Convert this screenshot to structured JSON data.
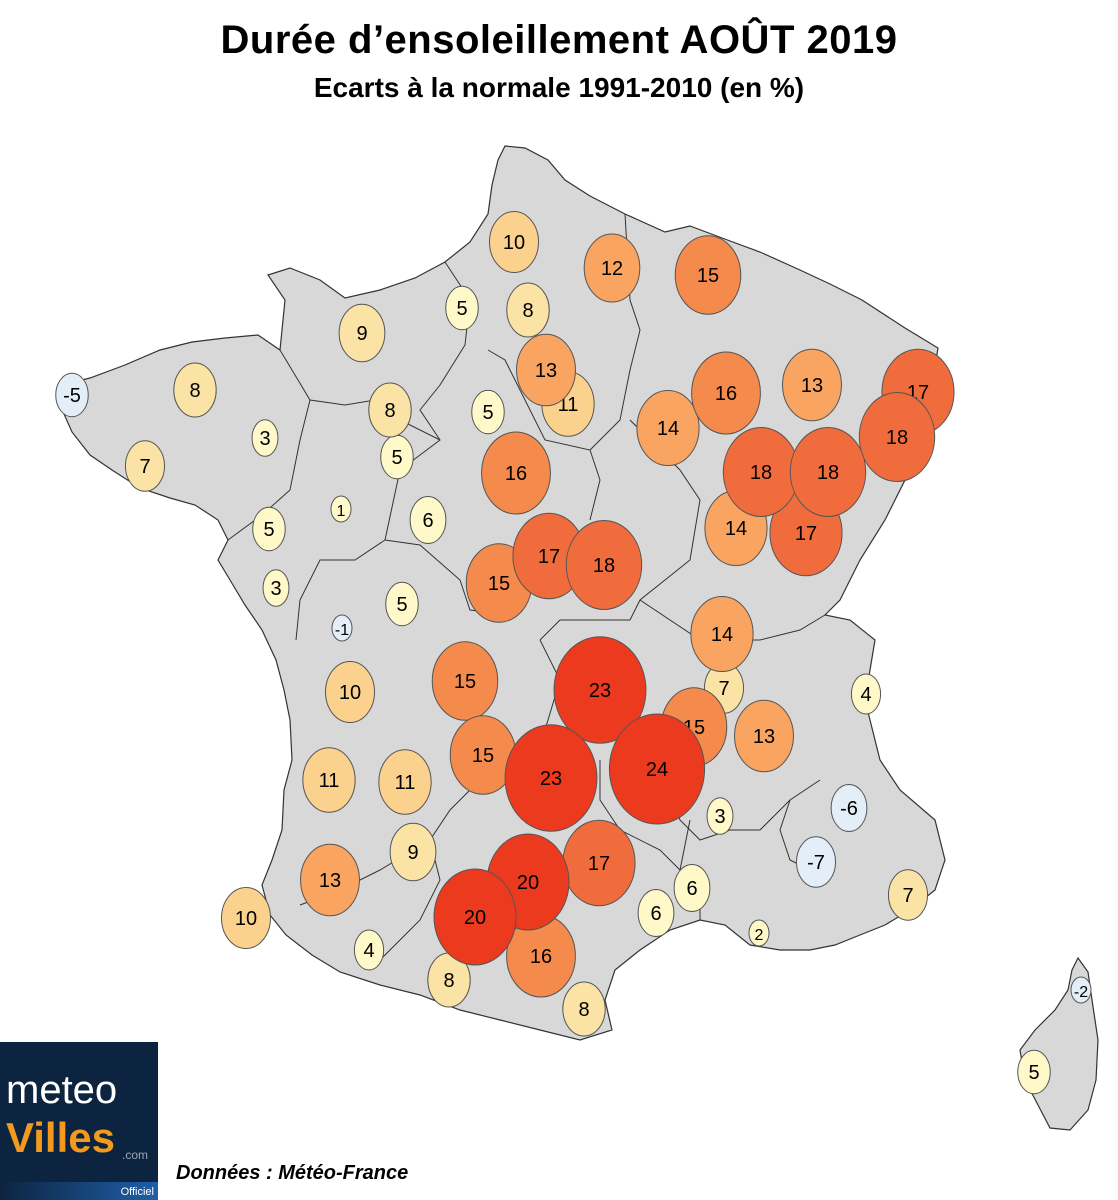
{
  "title": "Durée d’ensoleillement AOÛT 2019",
  "subtitle": "Ecarts à la normale 1991-2010 (en %)",
  "source": "Données : Météo-France",
  "logo": {
    "line1": "meteo",
    "line2": "Villes",
    "suffix": ".com",
    "tag": "Officiel"
  },
  "colors": {
    "land": "#d8d8d8",
    "border": "#333333",
    "negative": "#e3eef8",
    "very_low": "#fff8c8",
    "low": "#fbe3a5",
    "mid": "#fbd18e",
    "mid_high": "#f9a460",
    "high": "#f48a4b",
    "very_high": "#f06c3c",
    "extreme": "#ec3a1f"
  },
  "stations": [
    {
      "value": -5
    },
    {
      "value": 8
    },
    {
      "value": 3
    },
    {
      "value": 7
    },
    {
      "value": 9
    },
    {
      "value": 5
    },
    {
      "value": 10
    },
    {
      "value": 8
    },
    {
      "value": 12
    },
    {
      "value": 15
    },
    {
      "value": 8
    },
    {
      "value": 5
    },
    {
      "value": 13
    },
    {
      "value": 5
    },
    {
      "value": 11
    },
    {
      "value": 16
    },
    {
      "value": 14
    },
    {
      "value": 13
    },
    {
      "value": 17
    },
    {
      "value": 18
    },
    {
      "value": 18
    },
    {
      "value": 18
    },
    {
      "value": 1
    },
    {
      "value": 5
    },
    {
      "value": 6
    },
    {
      "value": 16
    },
    {
      "value": 14
    },
    {
      "value": 17
    },
    {
      "value": 3
    },
    {
      "value": 5
    },
    {
      "value": 15
    },
    {
      "value": 17
    },
    {
      "value": 18
    },
    {
      "value": -1
    },
    {
      "value": 14
    },
    {
      "value": 10
    },
    {
      "value": 15
    },
    {
      "value": 23
    },
    {
      "value": 7
    },
    {
      "value": 4
    },
    {
      "value": 15
    },
    {
      "value": 13
    },
    {
      "value": 11
    },
    {
      "value": 11
    },
    {
      "value": 15
    },
    {
      "value": 23
    },
    {
      "value": 24
    },
    {
      "value": 3
    },
    {
      "value": -6
    },
    {
      "value": 9
    },
    {
      "value": -7
    },
    {
      "value": 13
    },
    {
      "value": 20
    },
    {
      "value": 17
    },
    {
      "value": 6
    },
    {
      "value": 10
    },
    {
      "value": 20
    },
    {
      "value": 6
    },
    {
      "value": 7
    },
    {
      "value": 4
    },
    {
      "value": 2
    },
    {
      "value": 16
    },
    {
      "value": 8
    },
    {
      "value": 8
    },
    {
      "value": -2
    },
    {
      "value": 5
    }
  ]
}
